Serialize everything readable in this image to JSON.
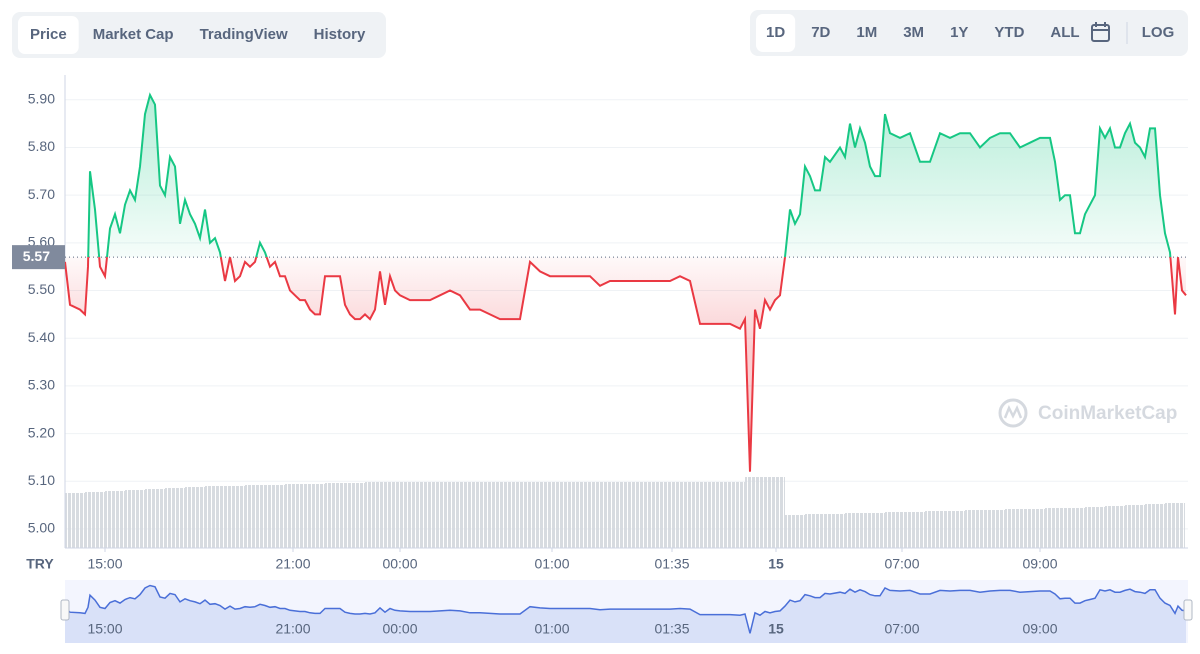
{
  "toolbar": {
    "tabs": [
      "Price",
      "Market Cap",
      "TradingView",
      "History"
    ],
    "active_tab": 0,
    "ranges": [
      "1D",
      "7D",
      "1M",
      "3M",
      "1Y",
      "YTD",
      "ALL"
    ],
    "active_range": 0,
    "log_button": "LOG"
  },
  "chart_data": {
    "type": "line",
    "currency": "TRY",
    "watermark": "CoinMarketCap",
    "color_above": "#16c784",
    "color_below": "#ea3943",
    "baseline": {
      "value": 5.57,
      "label": "5.57"
    },
    "xlim": [
      0,
      112.3
    ],
    "ylim": [
      4.96,
      5.952
    ],
    "yticks": [
      {
        "value": 5,
        "label": "5.00"
      },
      {
        "value": 5.1,
        "label": "5.10"
      },
      {
        "value": 5.2,
        "label": "5.20"
      },
      {
        "value": 5.3,
        "label": "5.30"
      },
      {
        "value": 5.4,
        "label": "5.40"
      },
      {
        "value": 5.5,
        "label": "5.50"
      },
      {
        "value": 5.6,
        "label": "5.60"
      },
      {
        "value": 5.7,
        "label": "5.70"
      },
      {
        "value": 5.8,
        "label": "5.80"
      },
      {
        "value": 5.9,
        "label": "5.90"
      }
    ],
    "xticks": [
      {
        "value": 4,
        "label": "15:00"
      },
      {
        "value": 22.8,
        "label": "21:00"
      },
      {
        "value": 33.5,
        "label": "00:00"
      },
      {
        "value": 48.7,
        "label": "01:00"
      },
      {
        "value": 60.7,
        "label": "01:35"
      },
      {
        "value": 71.1,
        "label": "15"
      },
      {
        "value": 83.7,
        "label": "07:00"
      },
      {
        "value": 97.5,
        "label": "09:00"
      }
    ],
    "grid": true,
    "series": [
      {
        "x": [
          0,
          0.5,
          1.5,
          2,
          2.3,
          2.5,
          3,
          3.5,
          4,
          4.5,
          5,
          5.5,
          6,
          6.5,
          7,
          7.5,
          8,
          8.5,
          9,
          9.5,
          10,
          10.5,
          11,
          11.5,
          12,
          12.5,
          13,
          13.5,
          14,
          14.5,
          15,
          15.5,
          16,
          16.5,
          17,
          17.5,
          18,
          18.5,
          19,
          19.5,
          20,
          20.5,
          21,
          21.5,
          22,
          22.5,
          23,
          23.5,
          24,
          24.5,
          25,
          25.5,
          26,
          26.5,
          27,
          27.5,
          28,
          28.5,
          29,
          29.5,
          30,
          30.5,
          31,
          31.5,
          32,
          32.5,
          33,
          33.5,
          34.5,
          35.5,
          36.5,
          37.5,
          38.5,
          39.5,
          40.5,
          41.5,
          42.5,
          43.5,
          44.5,
          45.5,
          46.5,
          47.5,
          48.5,
          49.5,
          50.5,
          51.5,
          52.5,
          53.5,
          54.5,
          55.5,
          56.5,
          57.5,
          58.5,
          59.5,
          60.5,
          61.5,
          62.5,
          63.5,
          64.5,
          65.5,
          66.5,
          67.5,
          68,
          68.5,
          69,
          69.5,
          70,
          70.5,
          71,
          71.5,
          72,
          72.5,
          73,
          73.5,
          74,
          74.5,
          75,
          75.5,
          76,
          76.5,
          77.5,
          78,
          78.5,
          79,
          79.5,
          80,
          80.5,
          81,
          81.5,
          82,
          82.5,
          83.5,
          84.5,
          85,
          85.5,
          86.5,
          87.5,
          88.5,
          89.5,
          90.5,
          91.5,
          92.5,
          93.5,
          94.5,
          95.5,
          96.5,
          97.5,
          98.5,
          99,
          99.5,
          100,
          100.5,
          101,
          101.5,
          102,
          102.5,
          103,
          103.5,
          104,
          104.5,
          105,
          105.5,
          106,
          106.5,
          107,
          107.5,
          108,
          108.5,
          109,
          109.5,
          110,
          110.5,
          111,
          111.3,
          111.7,
          112.1
        ],
        "values": [
          5.56,
          5.47,
          5.46,
          5.45,
          5.55,
          5.75,
          5.67,
          5.55,
          5.53,
          5.63,
          5.66,
          5.62,
          5.68,
          5.71,
          5.69,
          5.76,
          5.87,
          5.91,
          5.89,
          5.72,
          5.7,
          5.78,
          5.76,
          5.64,
          5.69,
          5.66,
          5.64,
          5.61,
          5.67,
          5.6,
          5.61,
          5.58,
          5.52,
          5.57,
          5.52,
          5.53,
          5.56,
          5.55,
          5.56,
          5.6,
          5.58,
          5.55,
          5.56,
          5.53,
          5.53,
          5.5,
          5.49,
          5.48,
          5.48,
          5.46,
          5.45,
          5.45,
          5.53,
          5.53,
          5.53,
          5.53,
          5.47,
          5.45,
          5.44,
          5.44,
          5.45,
          5.44,
          5.46,
          5.54,
          5.47,
          5.53,
          5.5,
          5.49,
          5.48,
          5.48,
          5.48,
          5.49,
          5.5,
          5.49,
          5.46,
          5.46,
          5.45,
          5.44,
          5.44,
          5.44,
          5.56,
          5.54,
          5.53,
          5.53,
          5.53,
          5.53,
          5.53,
          5.51,
          5.52,
          5.52,
          5.52,
          5.52,
          5.52,
          5.52,
          5.52,
          5.53,
          5.52,
          5.43,
          5.43,
          5.43,
          5.43,
          5.42,
          5.44,
          5.12,
          5.46,
          5.42,
          5.48,
          5.46,
          5.48,
          5.49,
          5.57,
          5.67,
          5.64,
          5.66,
          5.76,
          5.74,
          5.71,
          5.71,
          5.78,
          5.77,
          5.8,
          5.78,
          5.85,
          5.8,
          5.84,
          5.81,
          5.76,
          5.74,
          5.74,
          5.87,
          5.83,
          5.82,
          5.83,
          5.8,
          5.77,
          5.77,
          5.83,
          5.82,
          5.83,
          5.83,
          5.8,
          5.82,
          5.83,
          5.83,
          5.8,
          5.81,
          5.82,
          5.82,
          5.77,
          5.69,
          5.7,
          5.7,
          5.62,
          5.62,
          5.66,
          5.68,
          5.7,
          5.84,
          5.82,
          5.84,
          5.8,
          5.8,
          5.83,
          5.85,
          5.81,
          5.8,
          5.78,
          5.84,
          5.84,
          5.7,
          5.62,
          5.58,
          5.45,
          5.57,
          5.5,
          5.49
        ]
      }
    ],
    "volume": {
      "color": "#d3d7dd",
      "bins": [
        0,
        2,
        4,
        6,
        8,
        10,
        12,
        14,
        16,
        18,
        20,
        22,
        24,
        26,
        28,
        30,
        32,
        34,
        36,
        38,
        40,
        42,
        44,
        46,
        48,
        50,
        52,
        54,
        56,
        58,
        60,
        62,
        64,
        66,
        68,
        70,
        72,
        74,
        76,
        78,
        80,
        82,
        84,
        86,
        88,
        90,
        92,
        94,
        96,
        98,
        100,
        102,
        104,
        106,
        108,
        110,
        112
      ],
      "values": [
        55,
        56,
        57,
        58,
        59,
        60,
        61,
        62,
        62,
        63,
        63,
        64,
        64,
        65,
        65,
        66,
        66,
        66,
        66,
        66,
        66,
        66,
        66,
        66,
        66,
        66,
        66,
        66,
        66,
        66,
        66,
        66,
        66,
        66,
        71,
        71,
        33,
        34,
        34,
        35,
        35,
        36,
        36,
        37,
        37,
        38,
        38,
        39,
        39,
        40,
        40,
        41,
        42,
        43,
        44,
        45
      ]
    },
    "navigator": {
      "color": "#4a6fd8"
    }
  }
}
